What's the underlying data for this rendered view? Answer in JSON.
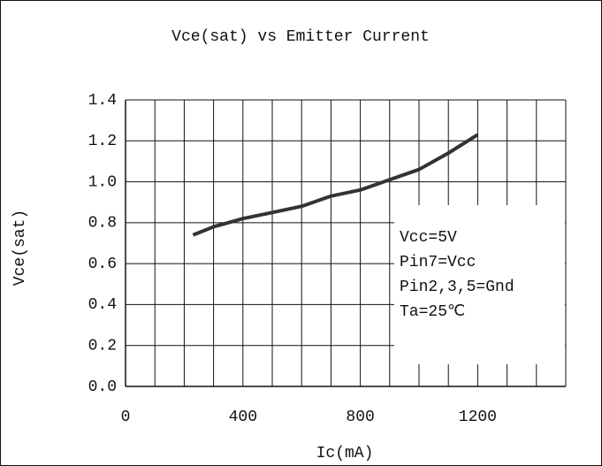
{
  "chart_data": {
    "type": "line",
    "title": "Vce(sat)  vs  Emitter Current",
    "xlabel": "Ic(mA)",
    "ylabel": "Vce(sat)",
    "x": [
      230,
      300,
      400,
      500,
      600,
      700,
      800,
      900,
      1000,
      1100,
      1200
    ],
    "values": [
      0.74,
      0.78,
      0.82,
      0.85,
      0.88,
      0.93,
      0.96,
      1.01,
      1.06,
      1.14,
      1.23
    ],
    "color": "#333333",
    "xlim": [
      0,
      1500
    ],
    "ylim": [
      0,
      1.4
    ],
    "xticks": [
      0,
      400,
      800,
      1200
    ],
    "xgrid": [
      100,
      200,
      300,
      400,
      500,
      600,
      700,
      800,
      900,
      1000,
      1100,
      1200,
      1300,
      1400,
      1500
    ],
    "yticks": [
      {
        "value": 0,
        "label": "0.0"
      },
      0.2,
      0.4,
      0.6,
      0.8,
      {
        "value": 1,
        "label": "1.0"
      },
      1.2,
      1.4
    ],
    "grid": true,
    "annotations": [
      "Vcc=5V",
      "Pin7=Vcc",
      "Pin2,3,5=Gnd",
      "Ta=25℃"
    ]
  }
}
